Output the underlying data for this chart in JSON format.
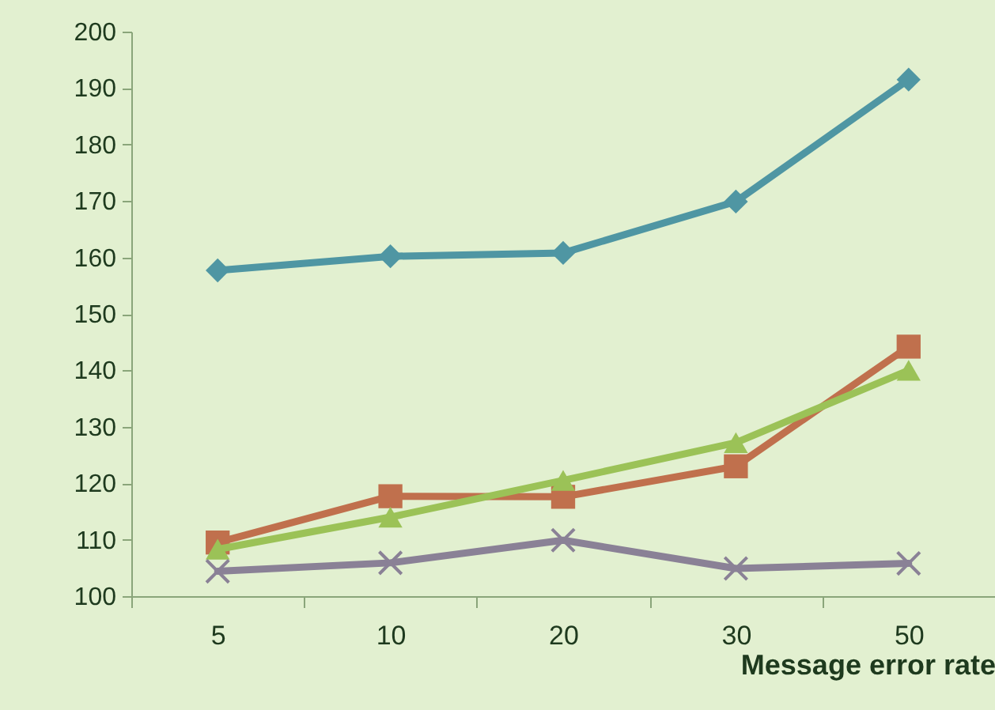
{
  "chart_data": {
    "type": "line",
    "xlabel": "Message error rate",
    "categories": [
      "5",
      "10",
      "20",
      "30",
      "50"
    ],
    "series": [
      {
        "color": "#4f96a3",
        "marker": "diamond",
        "values": [
          157.7,
          160.2,
          160.8,
          169.9,
          191.5
        ]
      },
      {
        "color": "#c0704d",
        "marker": "square",
        "values": [
          109.5,
          117.7,
          117.6,
          123,
          144.2
        ]
      },
      {
        "color": "#9bc257",
        "marker": "triangle",
        "values": [
          108.3,
          114,
          120.5,
          127.2,
          140
        ]
      },
      {
        "color": "#8a8196",
        "marker": "cross",
        "values": [
          104.4,
          105.9,
          109.9,
          104.9,
          105.8
        ]
      }
    ],
    "ylim": [
      100,
      200
    ],
    "yticks": [
      100,
      110,
      120,
      130,
      140,
      150,
      160,
      170,
      180,
      190,
      200
    ],
    "grid": false,
    "line_style": "solid"
  }
}
